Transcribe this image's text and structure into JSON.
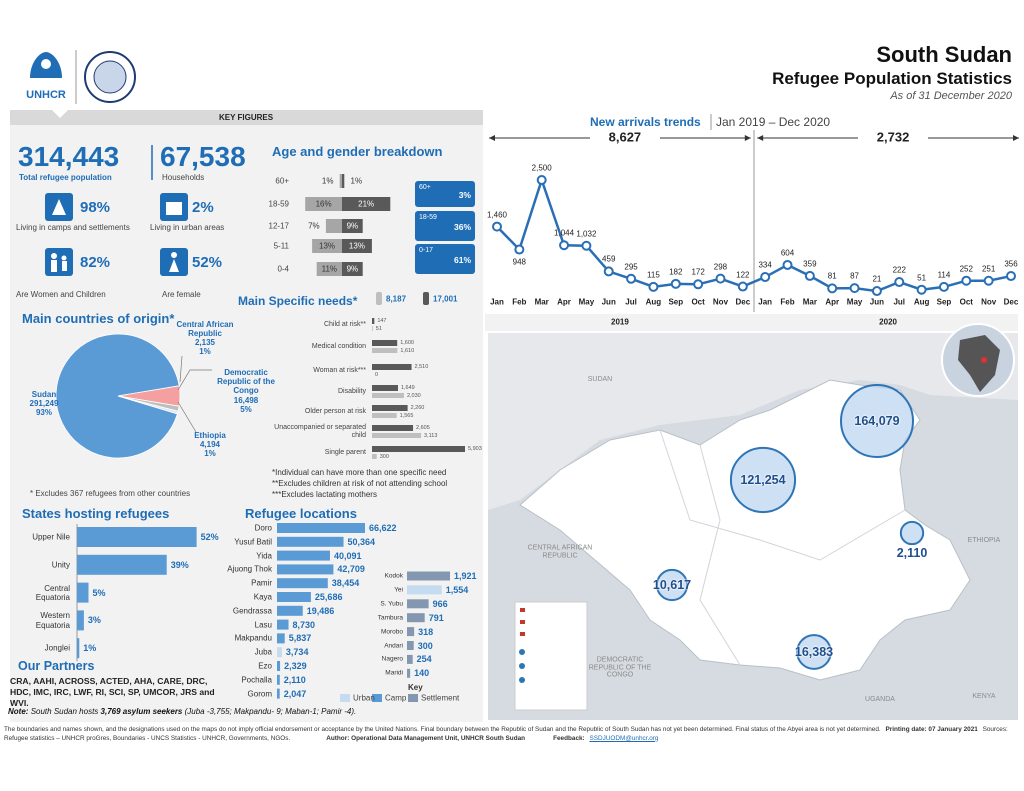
{
  "header": {
    "title": "South Sudan",
    "subtitle": "Refugee Population Statistics",
    "date": "As of 31 December 2020",
    "logo": "UNHCR"
  },
  "key_figures": {
    "heading": "KEY FIGURES",
    "items": [
      {
        "value": "314,443",
        "label": "Total refugee population"
      },
      {
        "value": "67,538",
        "label": "Households"
      },
      {
        "value": "98%",
        "label": "Living in camps and settlements"
      },
      {
        "value": "2%",
        "label": "Living in urban areas"
      },
      {
        "value": "82%",
        "label": "Are Women and Children"
      },
      {
        "value": "52%",
        "label": "Are female"
      }
    ]
  },
  "chart_data": [
    {
      "type": "pyramid",
      "title": "Age and gender breakdown",
      "categories": [
        "60+",
        "18-59",
        "12-17",
        "5-11",
        "0-4"
      ],
      "series": [
        {
          "color": "#a6a6a6",
          "values": [
            1,
            16,
            7,
            13,
            11
          ],
          "value_labels": [
            "1%",
            "16%",
            "7%",
            "13%",
            "11%"
          ]
        },
        {
          "color": "#595959",
          "values": [
            1,
            21,
            9,
            13,
            9
          ],
          "value_labels": [
            "1%",
            "21%",
            "9%",
            "13%",
            "9%"
          ]
        }
      ],
      "groups": [
        {
          "label": "60+",
          "share": "3%"
        },
        {
          "label": "18-59",
          "share": "36%"
        },
        {
          "label": "0-17",
          "share": "61%"
        }
      ],
      "color": "#1f6db5"
    },
    {
      "type": "line",
      "title": "New arrivals trends",
      "subtitle": "Jan 2019 – Dec 2020",
      "color": "#2a6fb5",
      "categories": [
        "Jan",
        "Feb",
        "Mar",
        "Apr",
        "May",
        "Jun",
        "Jul",
        "Aug",
        "Sep",
        "Oct",
        "Nov",
        "Dec",
        "Jan",
        "Feb",
        "Mar",
        "Apr",
        "May",
        "Jun",
        "Jul",
        "Aug",
        "Sep",
        "Oct",
        "Nov",
        "Dec"
      ],
      "values": [
        1460,
        948,
        2500,
        1044,
        1032,
        459,
        295,
        115,
        182,
        172,
        298,
        122,
        334,
        604,
        359,
        81,
        87,
        21,
        222,
        51,
        114,
        252,
        251,
        356
      ],
      "value_labels": [
        "1,460",
        "948",
        "2,500",
        "1,044",
        "1,032",
        "459",
        "295",
        "115",
        "182",
        "172",
        "298",
        "122",
        "334",
        "604",
        "359",
        "81",
        "87",
        "21",
        "222",
        "51",
        "114",
        "252",
        "251",
        "356"
      ],
      "groups": [
        {
          "label": "2019",
          "total": "8,627"
        },
        {
          "label": "2020",
          "total": "2,732"
        }
      ]
    },
    {
      "type": "bar",
      "title": "Main Specific needs*",
      "categories": [
        "Child at risk**",
        "Medical condition",
        "Woman at risk***",
        "Disability",
        "Older person at risk",
        "Unaccompanied or separated child",
        "Single parent"
      ],
      "series": [
        {
          "name": "8,187",
          "color": "#bfbfbf",
          "values": [
            51,
            1610,
            0,
            2030,
            1565,
            3113,
            300
          ],
          "value_labels": [
            "51",
            "1,610",
            "0",
            "2,030",
            "1,565",
            "3,113",
            "300"
          ]
        },
        {
          "name": "17,001",
          "color": "#595959",
          "values": [
            147,
            1600,
            2510,
            1649,
            2260,
            2605,
            5903
          ],
          "value_labels": [
            "147",
            "1,600",
            "2,510",
            "1,649",
            "2,260",
            "2,605",
            "5,903"
          ]
        }
      ],
      "notes": [
        "*Individual can have more than one specific need",
        "**Excludes children at risk of not attending school",
        "***Excludes lactating mothers"
      ]
    },
    {
      "type": "pie",
      "title": "Main countries of origin*",
      "categories": [
        "Sudan",
        "Democratic Republic of the Congo",
        "Ethiopia",
        "Central African Republic"
      ],
      "values": [
        291249,
        16498,
        4194,
        2135
      ],
      "value_labels": [
        "291,249",
        "16,498",
        "4,194",
        "2,135"
      ],
      "share_labels": [
        "93%",
        "5%",
        "1%",
        "1%"
      ],
      "colors": [
        "#5b9bd5",
        "#f4a0a0",
        "#bfbfbf",
        "#dfe8f3"
      ],
      "note": "* Excludes 367 refugees from other countries"
    },
    {
      "type": "bar",
      "title": "States hosting refugees",
      "categories": [
        "Upper Nile",
        "Unity",
        "Central Equatoria",
        "Western Equatoria",
        "Jonglei"
      ],
      "values": [
        52,
        39,
        5,
        3,
        1
      ],
      "value_labels": [
        "52%",
        "39%",
        "5%",
        "3%",
        "1%"
      ],
      "color": "#5b9bd5"
    },
    {
      "type": "bar",
      "title": "Refugee locations",
      "categories": [
        "Doro",
        "Yusuf Batil",
        "Yida",
        "Ajuong Thok",
        "Pamir",
        "Kaya",
        "Gendrassa",
        "Lasu",
        "Makpandu",
        "Juba",
        "Ezo",
        "Pochalla",
        "Gorom"
      ],
      "values": [
        66622,
        50364,
        40091,
        42709,
        38454,
        25686,
        19486,
        8730,
        5837,
        3734,
        2329,
        2110,
        2047
      ],
      "value_labels": [
        "66,622",
        "50,364",
        "40,091",
        "42,709",
        "38,454",
        "25,686",
        "19,486",
        "8,730",
        "5,837",
        "3,734",
        "2,329",
        "2,110",
        "2,047"
      ],
      "colors": [
        "#5b9bd5",
        "#5b9bd5",
        "#5b9bd5",
        "#5b9bd5",
        "#5b9bd5",
        "#5b9bd5",
        "#5b9bd5",
        "#5b9bd5",
        "#5b9bd5",
        "#c5dcf0",
        "#5b9bd5",
        "#5b9bd5",
        "#5b9bd5"
      ],
      "legend": {
        "title": "Key",
        "series": [
          {
            "name": "Urban",
            "color": "#c5dcf0"
          },
          {
            "name": "Camp",
            "color": "#5b9bd5"
          },
          {
            "name": "Settlement",
            "color": "#8497b0"
          }
        ]
      }
    },
    {
      "type": "bar",
      "categories": [
        "Kodok",
        "Yei",
        "S. Yubu",
        "Tambura",
        "Morobo",
        "Andari",
        "Nagero",
        "Maridi"
      ],
      "values": [
        1921,
        1554,
        966,
        791,
        318,
        300,
        254,
        140
      ],
      "value_labels": [
        "1,921",
        "1,554",
        "966",
        "791",
        "318",
        "300",
        "254",
        "140"
      ],
      "colors": [
        "#8497b0",
        "#c5dcf0",
        "#8497b0",
        "#8497b0",
        "#8497b0",
        "#8497b0",
        "#8497b0",
        "#8497b0"
      ]
    }
  ],
  "map": {
    "labels": [
      "SUDAN",
      "CENTRAL AFRICAN REPUBLIC",
      "DEMOCRATIC REPUBLIC OF THE CONGO",
      "ETHIOPIA",
      "UGANDA",
      "KENYA"
    ],
    "bubbles": {
      "color": "#2e75b6",
      "values": [
        164079,
        121254,
        10617,
        16383,
        2110
      ],
      "value_labels": [
        "164,079",
        "121,254",
        "10,617",
        "16,383",
        "2,110"
      ]
    }
  },
  "partners": {
    "title": "Our Partners",
    "text": "CRA, AAHI, ACROSS, ACTED, AHA, CARE, DRC, HDC, IMC, IRC, LWF, RI, SCI, SP, UMCOR, JRS and WVI."
  },
  "note": {
    "label": "Note:",
    "text": "South Sudan hosts",
    "emphasis": "3,769 asylum seekers",
    "rest": "(Juba -3,755; Makpandu- 9; Maban-1; Pamir -4)."
  },
  "footer": {
    "disclaimer": "The boundaries and names shown, and the designations used on the maps do not imply official endorsement or acceptance by the United Nations. Final boundary between the Republic of Sudan and the Republic of South Sudan has not yet been determined.  Final status of the Abyei area is not yet determined.",
    "printing": "Printing date: 07 January 2021",
    "sources": "Sources: Refugee statistics – UNHCR proGres, Boundaries - UNCS Statistics - UNHCR, Governments, NGOs.",
    "author": "Author: Operational Data Management Unit, UNHCR South Sudan",
    "feedback": "Feedback:",
    "email": "SSDJUODM@unhcr.org"
  }
}
